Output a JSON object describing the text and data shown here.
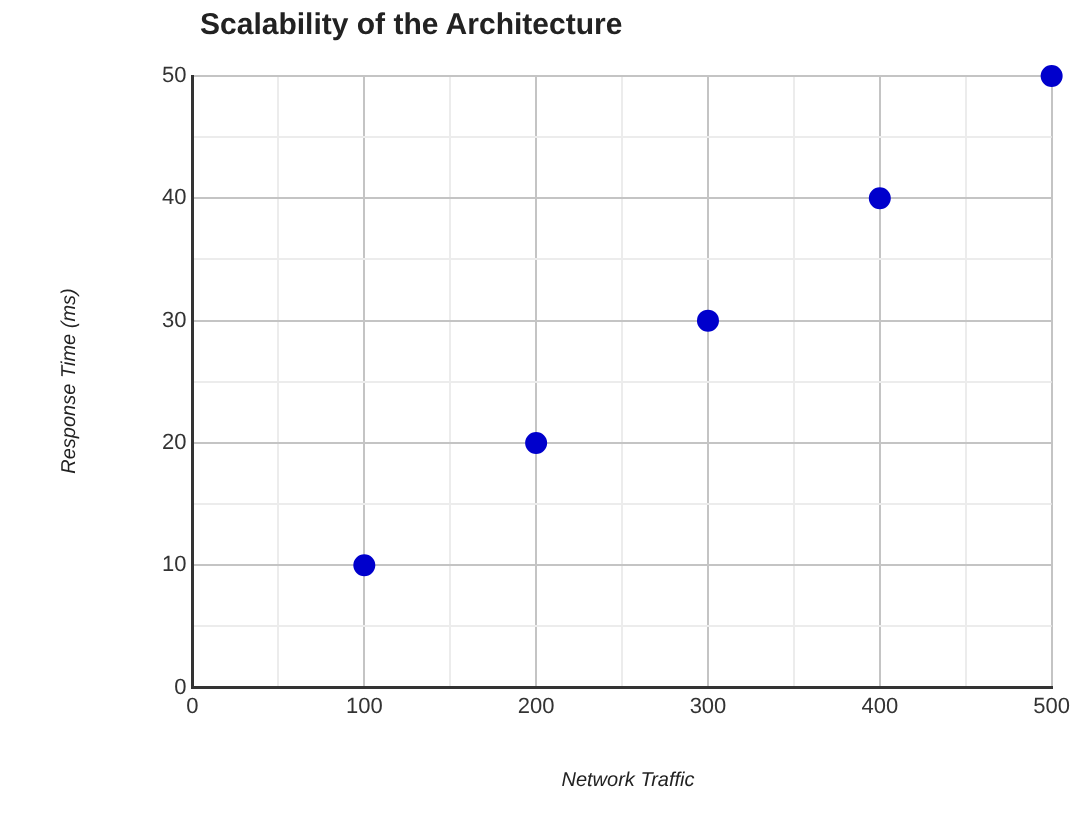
{
  "chart_data": {
    "type": "scatter",
    "title": "Scalability of the Architecture",
    "xlabel": "Network Traffic",
    "ylabel": "Response Time (ms)",
    "x": [
      100,
      200,
      300,
      400,
      500
    ],
    "series": [
      {
        "color": "#0000cc",
        "values": [
          10,
          20,
          30,
          40,
          50
        ]
      }
    ],
    "xlim": [
      0,
      500
    ],
    "ylim": [
      0,
      50
    ],
    "xticks": [
      0,
      {
        "value": 50,
        "label": null
      },
      100,
      {
        "value": 150,
        "label": null
      },
      200,
      {
        "value": 250,
        "label": null
      },
      300,
      {
        "value": 350,
        "label": null
      },
      400,
      {
        "value": 450,
        "label": null
      },
      500
    ],
    "yticks": [
      0,
      {
        "value": 5,
        "label": null
      },
      10,
      {
        "value": 15,
        "label": null
      },
      20,
      {
        "value": 25,
        "label": null
      },
      30,
      {
        "value": 35,
        "label": null
      },
      40,
      {
        "value": 45,
        "label": null
      },
      50
    ],
    "grid": true,
    "legend": false,
    "marker": "circle"
  }
}
